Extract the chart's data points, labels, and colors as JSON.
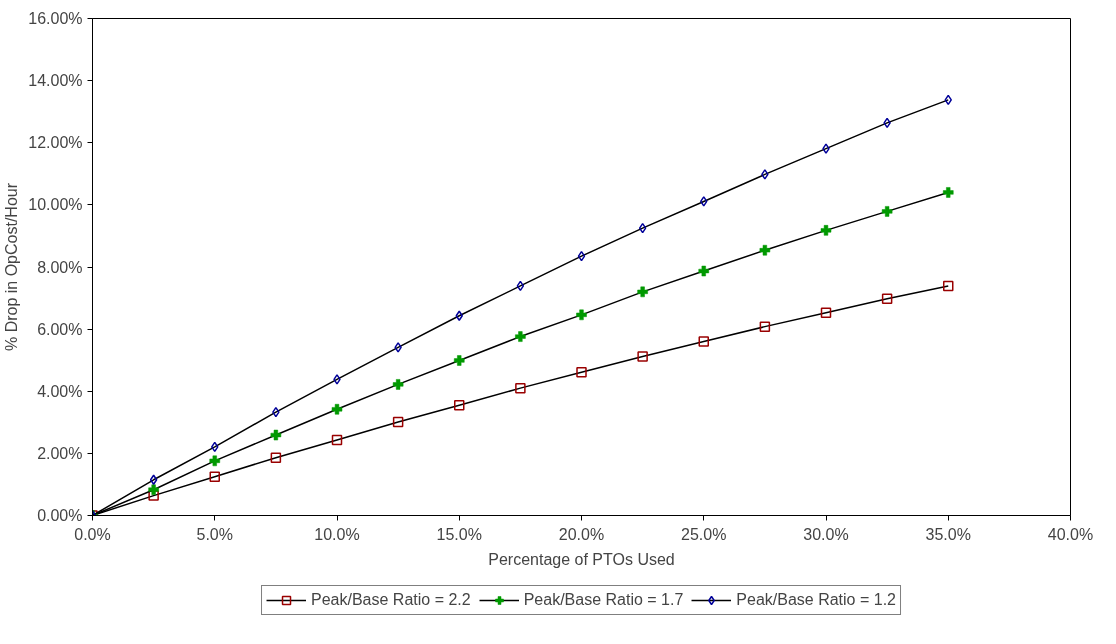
{
  "chart_data": {
    "type": "line",
    "xlabel": "Percentage of PTOs Used",
    "ylabel": "% Drop in OpCost/Hour",
    "x": [
      0,
      2.5,
      5,
      7.5,
      10,
      12.5,
      15,
      17.5,
      20,
      22.5,
      25,
      27.5,
      30,
      32.5,
      35
    ],
    "series": [
      {
        "name": "Peak/Base Ratio = 2.2",
        "color": "#990000",
        "marker": "square",
        "values": [
          0,
          0.64,
          1.25,
          1.86,
          2.43,
          3.01,
          3.55,
          4.1,
          4.61,
          5.12,
          5.6,
          6.08,
          6.53,
          6.98,
          7.39
        ]
      },
      {
        "name": "Peak/Base Ratio = 1.7",
        "color": "#009900",
        "marker": "cross",
        "values": [
          0,
          0.83,
          1.76,
          2.59,
          3.42,
          4.22,
          4.99,
          5.76,
          6.46,
          7.2,
          7.87,
          8.54,
          9.18,
          9.79,
          10.4
        ]
      },
      {
        "name": "Peak/Base Ratio = 1.2",
        "color": "#000099",
        "marker": "diamond",
        "values": [
          0,
          1.15,
          2.21,
          3.33,
          4.38,
          5.41,
          6.43,
          7.39,
          8.35,
          9.25,
          10.11,
          10.98,
          11.81,
          12.64,
          13.38
        ]
      }
    ],
    "xlim": [
      0,
      40
    ],
    "xticks": [
      {
        "value": 0,
        "label": "0.0%"
      },
      {
        "value": 5,
        "label": "5.0%"
      },
      {
        "value": 10,
        "label": "10.0%"
      },
      {
        "value": 15,
        "label": "15.0%"
      },
      {
        "value": 20,
        "label": "20.0%"
      },
      {
        "value": 25,
        "label": "25.0%"
      },
      {
        "value": 30,
        "label": "30.0%"
      },
      {
        "value": 35,
        "label": "35.0%"
      },
      {
        "value": 40,
        "label": "40.0%"
      }
    ],
    "ylim": [
      0,
      16
    ],
    "yticks": [
      {
        "value": 0,
        "label": "0.00%"
      },
      {
        "value": 2,
        "label": "2.00%"
      },
      {
        "value": 4,
        "label": "4.00%"
      },
      {
        "value": 6,
        "label": "6.00%"
      },
      {
        "value": 8,
        "label": "8.00%"
      },
      {
        "value": 10,
        "label": "10.00%"
      },
      {
        "value": 12,
        "label": "12.00%"
      },
      {
        "value": 14,
        "label": "14.00%"
      },
      {
        "value": 16,
        "label": "16.00%"
      }
    ],
    "grid": false,
    "legend": "bottom",
    "line_style": "solid"
  }
}
